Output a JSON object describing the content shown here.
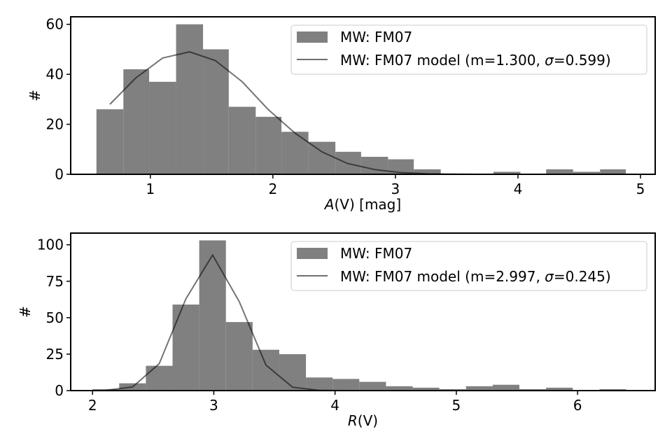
{
  "chart_data": [
    {
      "type": "bar",
      "xlabel_symbol": "A",
      "xlabel_arg": "(V)",
      "xlabel_unit": " [mag]",
      "ylabel": "#",
      "xlim": [
        0.35,
        5.12
      ],
      "ylim": [
        0,
        63
      ],
      "xticks": [
        "1",
        "2",
        "3",
        "4",
        "5"
      ],
      "xtick_values": [
        1,
        2,
        3,
        4,
        5
      ],
      "yticks": [
        "0",
        "20",
        "40",
        "60"
      ],
      "ytick_values": [
        0,
        20,
        40,
        60
      ],
      "histogram": {
        "name": "MW: FM07",
        "bin_edges": [
          0.56,
          0.78,
          0.99,
          1.21,
          1.43,
          1.64,
          1.86,
          2.07,
          2.29,
          2.51,
          2.72,
          2.94,
          3.15,
          3.37,
          3.59,
          3.8,
          4.02,
          4.23,
          4.45,
          4.67,
          4.88
        ],
        "counts": [
          26,
          42,
          37,
          60,
          50,
          27,
          23,
          17,
          13,
          9,
          7,
          6,
          2,
          0,
          0,
          1,
          0,
          2,
          1,
          2
        ]
      },
      "model": {
        "name_prefix": "MW: FM07 model (m=1.300, ",
        "name_sigma": "σ",
        "name_suffix": "=0.599)",
        "x": [
          0.67,
          0.88,
          1.1,
          1.32,
          1.53,
          1.75,
          1.96,
          2.18,
          2.4,
          2.61,
          2.83,
          3.04,
          3.26,
          3.48,
          3.69,
          3.91,
          4.12,
          4.34,
          4.56,
          4.77
        ],
        "y": [
          28,
          38.5,
          46.5,
          49,
          45.5,
          37,
          26,
          16.5,
          9,
          4.3,
          1.9,
          0.7,
          0.2,
          0.05,
          0,
          0,
          0,
          0,
          0,
          0
        ]
      },
      "bar_color": "#808080",
      "line_color": "#6e6e6e",
      "legend_position": "top-right"
    },
    {
      "type": "bar",
      "xlabel_symbol": "R",
      "xlabel_arg": "(V)",
      "xlabel_unit": "",
      "ylabel": "#",
      "xlim": [
        1.82,
        6.64
      ],
      "ylim": [
        0,
        108
      ],
      "xticks": [
        "2",
        "3",
        "4",
        "5",
        "6"
      ],
      "xtick_values": [
        2,
        3,
        4,
        5,
        6
      ],
      "yticks": [
        "0",
        "25",
        "50",
        "75",
        "100"
      ],
      "ytick_values": [
        0,
        25,
        50,
        75,
        100
      ],
      "histogram": {
        "name": "MW: FM07",
        "bin_edges": [
          2.0,
          2.22,
          2.44,
          2.66,
          2.88,
          3.1,
          3.32,
          3.54,
          3.76,
          3.98,
          4.2,
          4.42,
          4.64,
          4.86,
          5.08,
          5.3,
          5.52,
          5.74,
          5.96,
          6.18,
          6.4
        ],
        "counts": [
          1,
          5,
          17,
          59,
          103,
          47,
          28,
          25,
          9,
          8,
          6,
          3,
          2,
          1,
          3,
          4,
          1,
          2,
          0,
          1
        ]
      },
      "model": {
        "name_prefix": "MW: FM07 model (m=2.997, ",
        "name_sigma": "σ",
        "name_suffix": "=0.245)",
        "x": [
          2.11,
          2.33,
          2.55,
          2.77,
          2.99,
          3.21,
          3.43,
          3.65,
          3.87,
          4.09,
          4.31,
          4.53,
          4.75,
          4.97,
          5.19,
          5.41,
          5.63,
          5.85,
          6.07,
          6.29
        ],
        "y": [
          0.2,
          2.5,
          18.5,
          63,
          93,
          61,
          17.5,
          2.3,
          0.2,
          0,
          0,
          0,
          0,
          0,
          0,
          0,
          0,
          0,
          0,
          0
        ]
      },
      "bar_color": "#808080",
      "line_color": "#6e6e6e",
      "legend_position": "top-right"
    }
  ]
}
